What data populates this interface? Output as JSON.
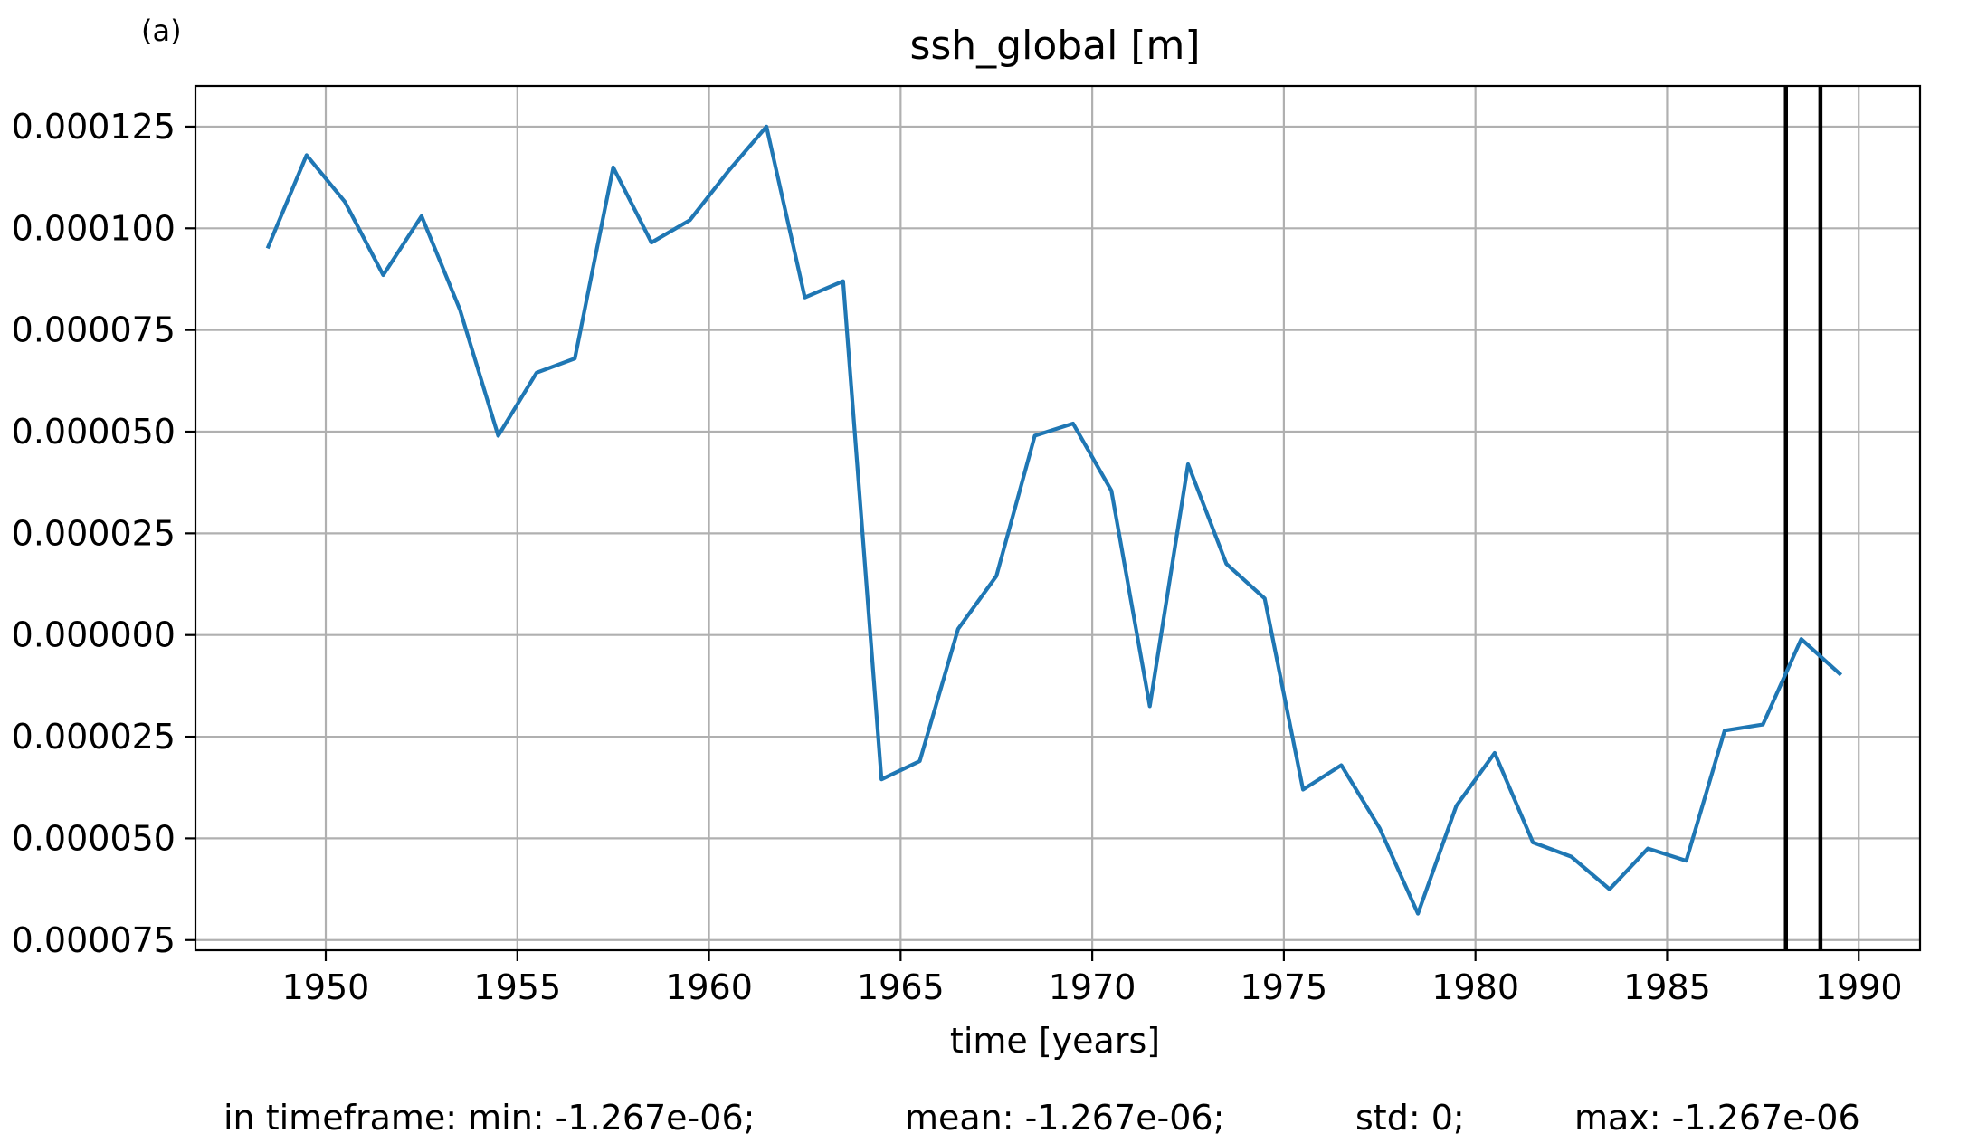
{
  "panel_label": "(a)",
  "stats": {
    "min": "in timeframe: min: -1.267e-06;",
    "mean": "mean: -1.267e-06;",
    "std": "std: 0;",
    "max": "max: -1.267e-06"
  },
  "chart_data": {
    "type": "line",
    "title": "ssh_global [m]",
    "xlabel": "time [years]",
    "ylabel": "",
    "xlim": [
      1946.6,
      1991.6
    ],
    "ylim": [
      -7.75e-05,
      0.000135
    ],
    "xticks": [
      1950,
      1955,
      1960,
      1965,
      1970,
      1975,
      1980,
      1985,
      1990
    ],
    "xtick_labels": [
      "1950",
      "1955",
      "1960",
      "1965",
      "1970",
      "1975",
      "1980",
      "1985",
      "1990"
    ],
    "yticks": [
      0.000125,
      0.0001,
      7.5e-05,
      5e-05,
      2.5e-05,
      0.0,
      -2.5e-05,
      -5e-05,
      -7.5e-05
    ],
    "ytick_labels": [
      "0.000125",
      "0.000100",
      "0.000075",
      "0.000050",
      "0.000025",
      "0.000000",
      "0.000025",
      "0.000050",
      "0.000075"
    ],
    "grid": true,
    "colors": {
      "series": "#1f77b4",
      "grid": "#b0b0b0",
      "vlines": "#000000"
    },
    "vertical_lines": [
      1988.1,
      1989.0
    ],
    "series": [
      {
        "x": [
          1948.5,
          1949.5,
          1950.5,
          1951.5,
          1952.5,
          1953.5,
          1954.5,
          1955.5,
          1956.5,
          1957.5,
          1958.5,
          1959.5,
          1960.5,
          1961.5,
          1962.5,
          1963.5,
          1964.5,
          1965.5,
          1966.5,
          1967.5,
          1968.5,
          1969.5,
          1970.5,
          1971.5,
          1972.5,
          1973.5,
          1974.5,
          1975.5,
          1976.5,
          1977.5,
          1978.5,
          1979.5,
          1980.5,
          1981.5,
          1982.5,
          1983.5,
          1984.5,
          1985.5,
          1986.5,
          1987.5,
          1988.5,
          1989.5
        ],
        "values": [
          9.55e-05,
          0.000118,
          0.0001065,
          8.85e-05,
          0.000103,
          8e-05,
          4.9e-05,
          6.45e-05,
          6.8e-05,
          0.000115,
          9.65e-05,
          0.000102,
          0.000114,
          0.000125,
          8.3e-05,
          8.7e-05,
          -3.55e-05,
          -3.1e-05,
          1.5e-06,
          1.45e-05,
          4.9e-05,
          5.2e-05,
          3.55e-05,
          -1.75e-05,
          4.2e-05,
          1.75e-05,
          9e-06,
          -3.8e-05,
          -3.2e-05,
          -4.75e-05,
          -6.85e-05,
          -4.2e-05,
          -2.9e-05,
          -5.1e-05,
          -5.45e-05,
          -6.25e-05,
          -5.25e-05,
          -5.55e-05,
          -2.35e-05,
          -2.2e-05,
          -1e-06,
          -9.5e-06
        ]
      }
    ]
  }
}
